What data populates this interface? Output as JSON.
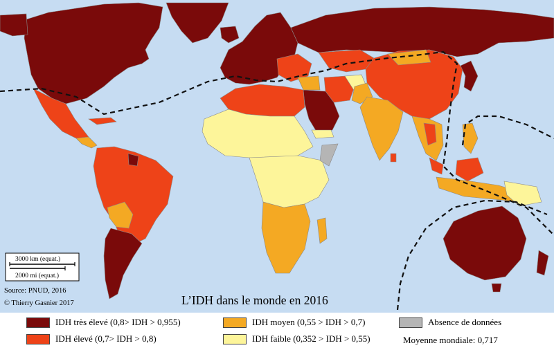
{
  "title": "L’IDH dans le monde en 2016",
  "source": "Source: PNUD, 2016",
  "copyright": "© Thierry Gasnier 2017",
  "scale_bar": {
    "km_label": "3000 km (equat.)",
    "mi_label": "2000 mi (equat.)"
  },
  "legend": {
    "items": [
      {
        "label": "IDH très élevé (0,8> IDH > 0,955)",
        "color": "#7a0a0a"
      },
      {
        "label": "IDH élevé (0,7> IDH > 0,8)",
        "color": "#ee4318"
      },
      {
        "label": "IDH moyen (0,55 > IDH > 0,7)",
        "color": "#f4a923"
      },
      {
        "label": "IDH faible (0,352 > IDH > 0,55)",
        "color": "#fdf59a"
      },
      {
        "label": "Absence de données",
        "color": "#b5b5b5"
      }
    ],
    "note": "Moyenne mondiale: 0,717"
  }
}
